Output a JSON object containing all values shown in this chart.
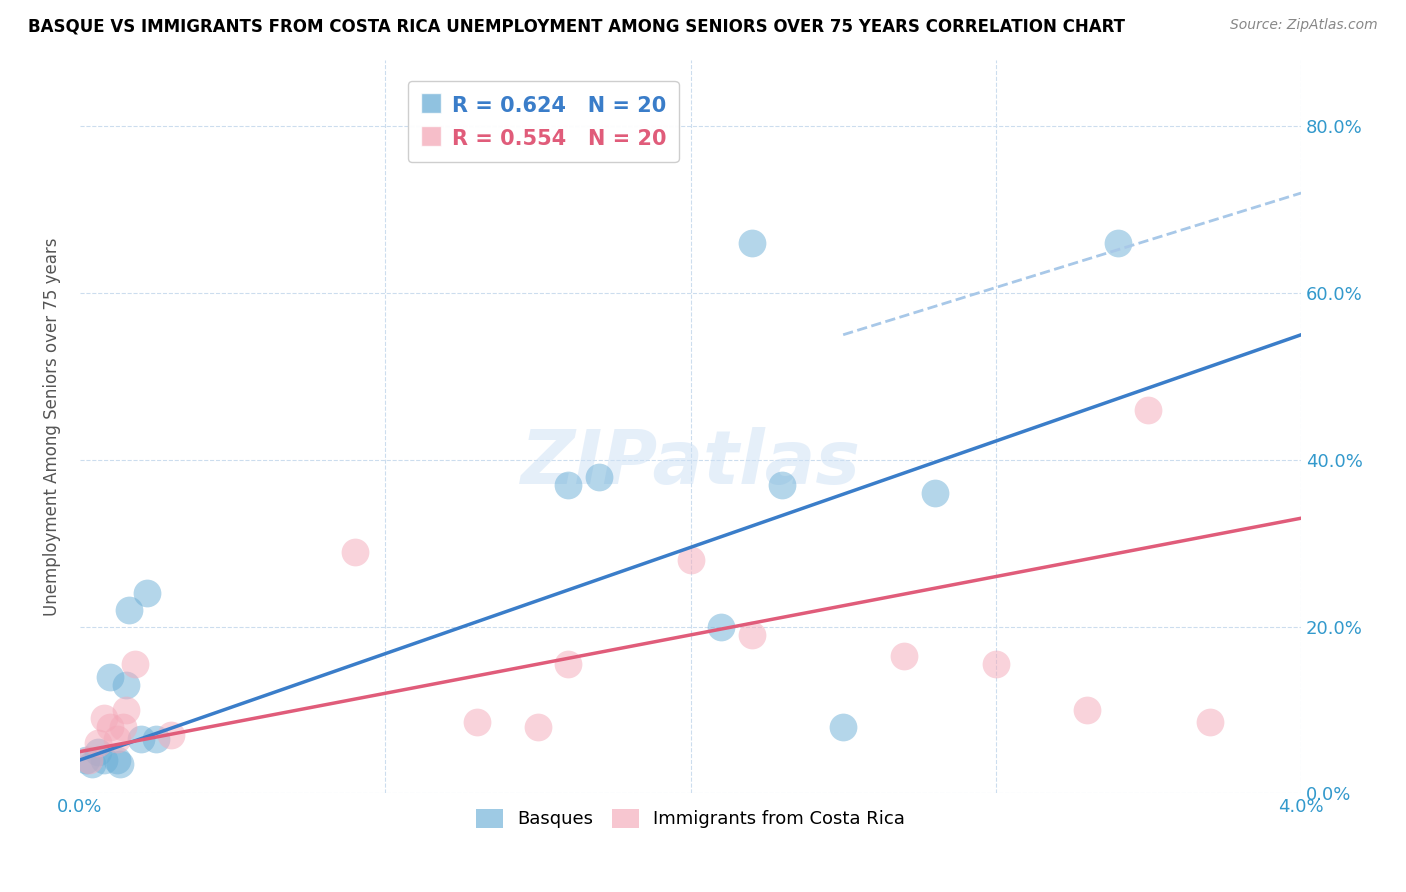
{
  "title": "BASQUE VS IMMIGRANTS FROM COSTA RICA UNEMPLOYMENT AMONG SENIORS OVER 75 YEARS CORRELATION CHART",
  "source": "Source: ZipAtlas.com",
  "xlabel_ticks_vals": [
    0.0,
    0.01,
    0.02,
    0.03,
    0.04
  ],
  "xlabel_ticks_labels": [
    "0.0%",
    "",
    "",
    "",
    "4.0%"
  ],
  "ylabel_ticks_vals": [
    0.0,
    0.2,
    0.4,
    0.6,
    0.8
  ],
  "ylabel_ticks_labels": [
    "0.0%",
    "20.0%",
    "40.0%",
    "60.0%",
    "80.0%"
  ],
  "xlim": [
    0.0,
    0.04
  ],
  "ylim": [
    0.0,
    0.88
  ],
  "ylabel": "Unemployment Among Seniors over 75 years",
  "basque_color": "#6baed6",
  "costa_rica_color": "#f4a8b8",
  "basque_line_color": "#3a7dc9",
  "costa_rica_line_color": "#e05c7a",
  "dashed_line_color": "#a8c8e8",
  "R_basque": 0.624,
  "N_basque": 20,
  "R_costa": 0.554,
  "N_costa": 20,
  "basque_x": [
    0.0002,
    0.0004,
    0.0006,
    0.0008,
    0.001,
    0.0012,
    0.0013,
    0.0015,
    0.0016,
    0.002,
    0.0022,
    0.0025,
    0.016,
    0.017,
    0.021,
    0.022,
    0.023,
    0.025,
    0.028,
    0.034
  ],
  "basque_y": [
    0.04,
    0.035,
    0.05,
    0.04,
    0.14,
    0.04,
    0.035,
    0.13,
    0.22,
    0.065,
    0.24,
    0.065,
    0.37,
    0.38,
    0.2,
    0.66,
    0.37,
    0.08,
    0.36,
    0.66
  ],
  "costa_x": [
    0.0003,
    0.0006,
    0.0008,
    0.001,
    0.0012,
    0.0014,
    0.0015,
    0.0018,
    0.003,
    0.009,
    0.013,
    0.015,
    0.016,
    0.02,
    0.022,
    0.027,
    0.03,
    0.033,
    0.035,
    0.037
  ],
  "costa_y": [
    0.04,
    0.06,
    0.09,
    0.08,
    0.065,
    0.08,
    0.1,
    0.155,
    0.07,
    0.29,
    0.085,
    0.08,
    0.155,
    0.28,
    0.19,
    0.165,
    0.155,
    0.1,
    0.46,
    0.085
  ],
  "basque_line_x": [
    0.0,
    0.04
  ],
  "basque_line_y": [
    0.04,
    0.55
  ],
  "costa_line_x": [
    0.0,
    0.04
  ],
  "costa_line_y": [
    0.05,
    0.33
  ],
  "dashed_line_x": [
    0.025,
    0.04
  ],
  "dashed_line_y": [
    0.55,
    0.72
  ],
  "watermark": "ZIPatlas",
  "legend_items": [
    "Basques",
    "Immigrants from Costa Rica"
  ]
}
